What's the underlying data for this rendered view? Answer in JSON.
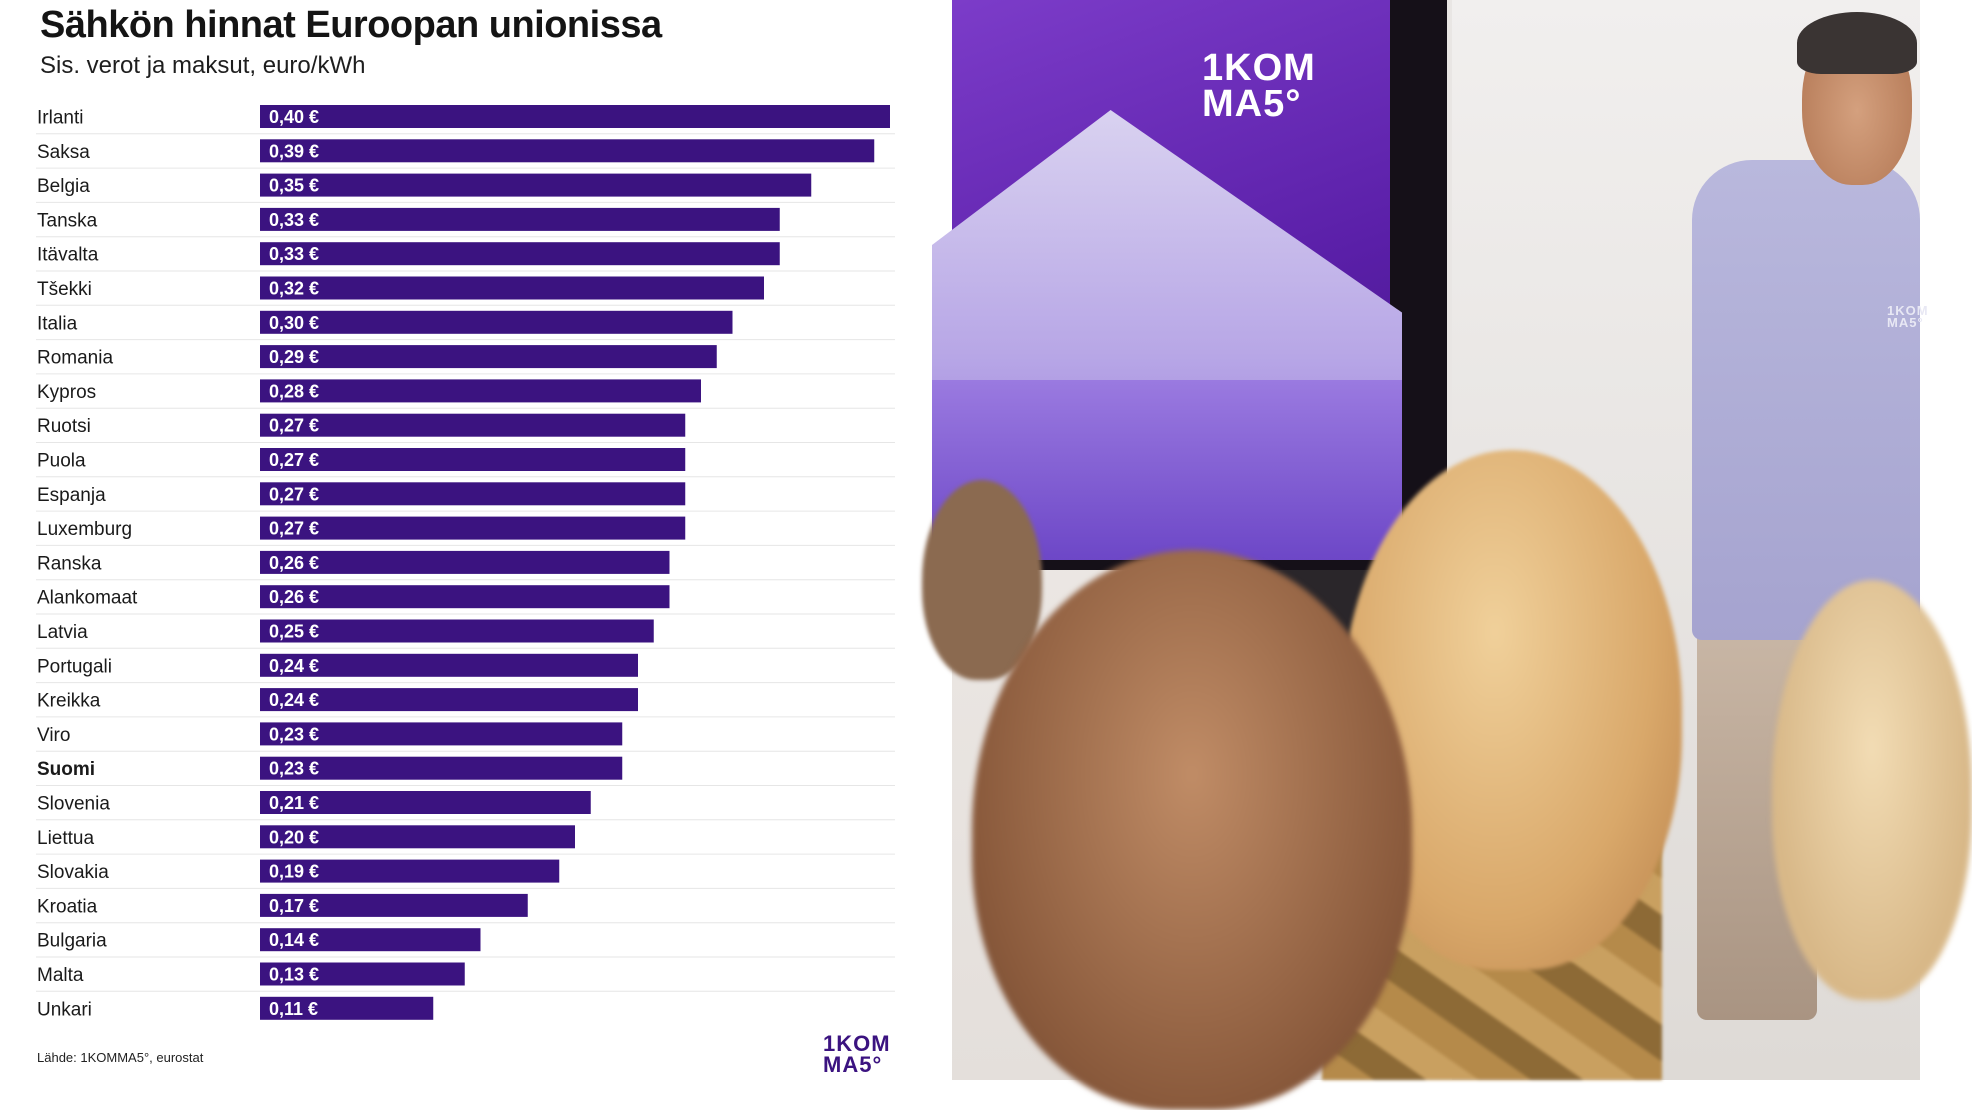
{
  "chart": {
    "title": "Sähkön hinnat Euroopan unionissa",
    "subtitle": "Sis. verot ja maksut, euro/kWh",
    "source": "Lähde: 1KOMMA5°, eurostat",
    "logo_line1": "1KOM",
    "logo_line2": "MA5°"
  },
  "chart_data": {
    "type": "bar",
    "orientation": "horizontal",
    "title": "Sähkön hinnat Euroopan unionissa",
    "subtitle": "Sis. verot ja maksut, euro/kWh",
    "categories": [
      "Irlanti",
      "Saksa",
      "Belgia",
      "Tanska",
      "Itävalta",
      "Tšekki",
      "Italia",
      "Romania",
      "Kypros",
      "Ruotsi",
      "Puola",
      "Espanja",
      "Luxemburg",
      "Ranska",
      "Alankomaat",
      "Latvia",
      "Portugali",
      "Kreikka",
      "Viro",
      "Suomi",
      "Slovenia",
      "Liettua",
      "Slovakia",
      "Kroatia",
      "Bulgaria",
      "Malta",
      "Unkari"
    ],
    "values": [
      0.4,
      0.39,
      0.35,
      0.33,
      0.33,
      0.32,
      0.3,
      0.29,
      0.28,
      0.27,
      0.27,
      0.27,
      0.27,
      0.26,
      0.26,
      0.25,
      0.24,
      0.24,
      0.23,
      0.23,
      0.21,
      0.2,
      0.19,
      0.17,
      0.14,
      0.13,
      0.11
    ],
    "value_labels": [
      "0,40 €",
      "0,39 €",
      "0,35 €",
      "0,33 €",
      "0,33 €",
      "0,32 €",
      "0,30 €",
      "0,29 €",
      "0,28 €",
      "0,27 €",
      "0,27 €",
      "0,27 €",
      "0,27 €",
      "0,26 €",
      "0,26 €",
      "0,25 €",
      "0,24 €",
      "0,24 €",
      "0,23 €",
      "0,23 €",
      "0,21 €",
      "0,20 €",
      "0,19 €",
      "0,17 €",
      "0,14 €",
      "0,13 €",
      "0,11 €"
    ],
    "highlight_category": "Suomi",
    "xlim": [
      0,
      0.4
    ],
    "bar_color": "#3b1380",
    "label_color": "#ffffff",
    "grid": false,
    "legend": "none"
  },
  "photo": {
    "screen_logo_line1": "1KOM",
    "screen_logo_line2": "MA5°",
    "sweater_logo_line1": "1KOM",
    "sweater_logo_line2": "MA5°",
    "accent_color": "#6a2bbd"
  }
}
